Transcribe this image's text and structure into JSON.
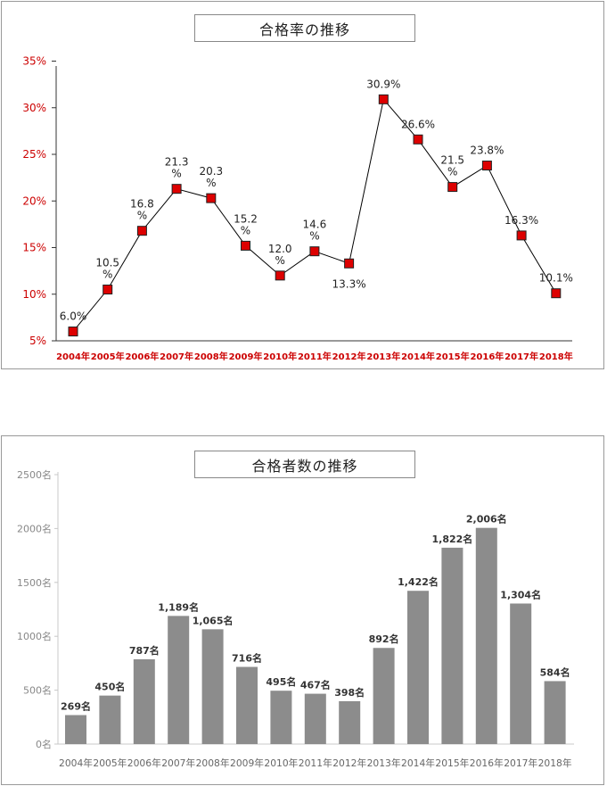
{
  "chart_data": [
    {
      "type": "line",
      "title": "合格率の推移",
      "categories": [
        "2004年",
        "2005年",
        "2006年",
        "2007年",
        "2008年",
        "2009年",
        "2010年",
        "2011年",
        "2012年",
        "2013年",
        "2014年",
        "2015年",
        "2016年",
        "2017年",
        "2018年"
      ],
      "values": [
        6.0,
        10.5,
        16.8,
        21.3,
        20.3,
        15.2,
        12.0,
        14.6,
        13.3,
        30.9,
        26.6,
        21.5,
        23.8,
        16.3,
        10.1
      ],
      "value_labels": [
        "6.0%",
        "10.5\n%",
        "16.8\n%",
        "21.3\n%",
        "20.3\n%",
        "15.2\n%",
        "12.0\n%",
        "14.6\n%",
        "13.3%",
        "30.9%",
        "26.6%",
        "21.5\n%",
        "23.8%",
        "16.3%",
        "10.1%"
      ],
      "y_ticks": [
        "35%",
        "30%",
        "25%",
        "20%",
        "15%",
        "10%",
        "5%"
      ],
      "ylim": [
        5,
        35
      ],
      "axis_label_color": "#cc0000",
      "marker_color": "#dd0000",
      "grid": false
    },
    {
      "type": "bar",
      "title": "合格者数の推移",
      "categories": [
        "2004年",
        "2005年",
        "2006年",
        "2007年",
        "2008年",
        "2009年",
        "2010年",
        "2011年",
        "2012年",
        "2013年",
        "2014年",
        "2015年",
        "2016年",
        "2017年",
        "2018年"
      ],
      "values": [
        269,
        450,
        787,
        1189,
        1065,
        716,
        495,
        467,
        398,
        892,
        1422,
        1822,
        2006,
        1304,
        584
      ],
      "value_labels": [
        "269名",
        "450名",
        "787名",
        "1,189名",
        "1,065名",
        "716名",
        "495名",
        "467名",
        "398名",
        "892名",
        "1,422名",
        "1,822名",
        "2,006名",
        "1,304名",
        "584名"
      ],
      "y_ticks": [
        "2500名",
        "2000名",
        "1500名",
        "1000名",
        "500名",
        "0名"
      ],
      "ylim": [
        0,
        2500
      ],
      "bar_color": "#8c8c8c",
      "grid": false
    }
  ]
}
